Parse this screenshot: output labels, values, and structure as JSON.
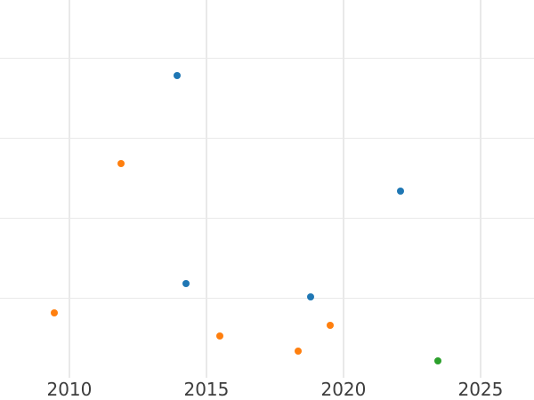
{
  "colors": {
    "background": "#ffffff",
    "grid": "#e9e9e9",
    "tick_text": "#3d3d3d",
    "series_blue": "#1f77b4",
    "series_orange": "#ff7f0e",
    "series_green": "#2ca02c"
  },
  "chart_data": {
    "type": "scatter",
    "title": "",
    "xlabel": "",
    "ylabel": "",
    "grid": true,
    "legend_visible": false,
    "marker_size_px": 8,
    "x_axis": {
      "min": 2007.47,
      "max": 2026.95,
      "tick_values": [
        2010,
        2015,
        2020,
        2025
      ],
      "tick_labels": [
        "2010",
        "2015",
        "2020",
        "2025"
      ]
    },
    "y_axis": {
      "min": 0,
      "max": 4.73,
      "gridline_values": [
        1,
        2,
        3,
        4
      ],
      "tick_labels": [],
      "tick_labels_visible": false
    },
    "series": [
      {
        "name": "blue",
        "color": "#1f77b4",
        "points": [
          {
            "x": 2013.93,
            "y": 3.78
          },
          {
            "x": 2014.25,
            "y": 1.18
          },
          {
            "x": 2018.8,
            "y": 1.02
          },
          {
            "x": 2022.08,
            "y": 2.34
          }
        ]
      },
      {
        "name": "orange",
        "color": "#ff7f0e",
        "points": [
          {
            "x": 2009.45,
            "y": 0.82
          },
          {
            "x": 2011.88,
            "y": 2.68
          },
          {
            "x": 2015.49,
            "y": 0.53
          },
          {
            "x": 2018.34,
            "y": 0.34
          },
          {
            "x": 2019.51,
            "y": 0.66
          }
        ]
      },
      {
        "name": "green",
        "color": "#2ca02c",
        "points": [
          {
            "x": 2023.44,
            "y": 0.22
          }
        ]
      }
    ]
  }
}
